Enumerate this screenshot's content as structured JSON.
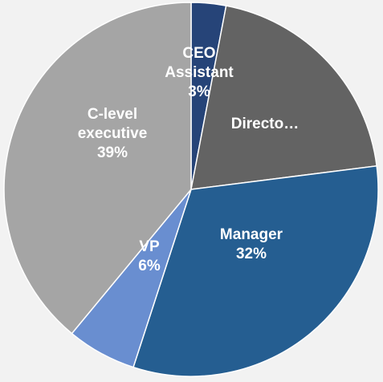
{
  "chart_data": {
    "type": "pie",
    "title": "",
    "slices": [
      {
        "label": "CEO Assistant",
        "value": 3,
        "percent_label": "3%",
        "label_lines": [
          "CEO",
          "Assistant",
          "3%"
        ],
        "color": "#264478"
      },
      {
        "label": "Directo…",
        "value": 20,
        "percent_label": "",
        "label_lines": [
          "Directo…"
        ],
        "color": "#636363"
      },
      {
        "label": "Manager",
        "value": 32,
        "percent_label": "32%",
        "label_lines": [
          "Manager",
          "32%"
        ],
        "color": "#255e91"
      },
      {
        "label": "VP",
        "value": 6,
        "percent_label": "6%",
        "label_lines": [
          "VP",
          "6%"
        ],
        "color": "#698ed0"
      },
      {
        "label": "C-level executive",
        "value": 39,
        "percent_label": "39%",
        "label_lines": [
          "C-level",
          "executive",
          "39%"
        ],
        "color": "#a5a5a5"
      }
    ],
    "start_angle_deg": 0,
    "direction": "clockwise",
    "legend": "none"
  },
  "colors": {
    "background": "#f2f2f2",
    "label_text": "#ffffff"
  }
}
